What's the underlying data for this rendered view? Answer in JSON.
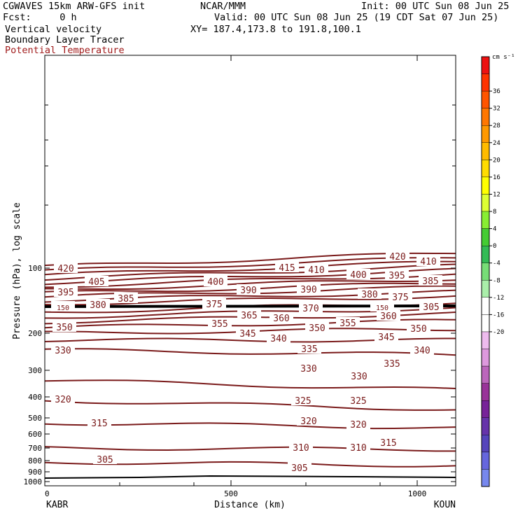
{
  "header": {
    "model": "CGWAVES 15km ARW-GFS init",
    "org": "NCAR/MMM",
    "init": "Init: 00 UTC Sun 08 Jun 25",
    "fcst": "Fcst:     0 h",
    "valid": "Valid: 00 UTC Sun 08 Jun 25 (19 CDT Sat 07 Jun 25)",
    "field1": "Vertical velocity",
    "xy": "XY= 187.4,173.8 to 191.8,100.1",
    "field2": "Boundary Layer Tracer",
    "field3": "Potential Temperature"
  },
  "chart_data": {
    "type": "contour-cross-section",
    "ylabel": "Pressure (hPa), log scale",
    "xlabel": "Distance (km)",
    "y_scale": "log",
    "x_ticks": [
      "0",
      "500",
      "1000"
    ],
    "y_ticks": [
      "100",
      "200",
      "300",
      "400",
      "500",
      "600",
      "700",
      "800",
      "900",
      "1000"
    ],
    "xlim": [
      0,
      1100
    ],
    "left_station": "KABR",
    "right_station": "KOUN",
    "colorbar_unit": "cm s⁻¹",
    "colorbar_labels": [
      "36",
      "32",
      "28",
      "24",
      "20",
      "16",
      "12",
      "8",
      "4",
      "0",
      "-4",
      "-8",
      "-12",
      "-16",
      "-20"
    ],
    "colorbar_colors": [
      "#ee1111",
      "#ff3300",
      "#ff5500",
      "#ff7700",
      "#ff9900",
      "#ffbb00",
      "#ffdd00",
      "#ffff00",
      "#ddff33",
      "#88ee33",
      "#44cc33",
      "#33bb55",
      "#77dd77",
      "#aaeeaa",
      "#ffffff",
      "#ffffff",
      "#eebbee",
      "#dd99dd",
      "#bb66bb",
      "#993399",
      "#772299",
      "#6633aa",
      "#5544bb",
      "#6666dd",
      "#7788ee"
    ],
    "contour_color": "#7a1a1a",
    "contour_labels": [
      "420",
      "415",
      "410",
      "405",
      "400",
      "395",
      "390",
      "385",
      "380",
      "375",
      "370",
      "365",
      "360",
      "355",
      "350",
      "345",
      "340",
      "335",
      "330",
      "325",
      "320",
      "315",
      "310",
      "305",
      "150"
    ]
  }
}
